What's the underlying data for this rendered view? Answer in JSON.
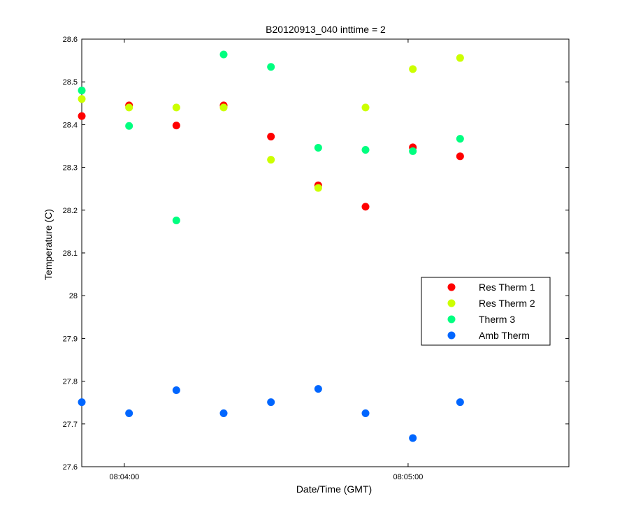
{
  "chart_data": {
    "type": "scatter",
    "title": "B20120913_040 inttime = 2",
    "xlabel": "Date/Time (GMT)",
    "ylabel": "Temperature (C)",
    "ylim": [
      27.6,
      28.6
    ],
    "xlim": [
      "08:03:51",
      "08:05:34"
    ],
    "y_ticks": [
      27.6,
      27.7,
      27.8,
      27.9,
      28.0,
      28.1,
      28.2,
      28.3,
      28.4,
      28.5,
      28.6
    ],
    "y_tick_labels": [
      "27.6",
      "27.7",
      "27.8",
      "27.9",
      "28",
      "28.1",
      "28.2",
      "28.3",
      "28.4",
      "28.5",
      "28.6"
    ],
    "x_ticks": [
      "08:04:00",
      "08:05:00"
    ],
    "x_tick_labels": [
      "08:04:00",
      "08:05:00"
    ],
    "grid": false,
    "legend_position": "center-right",
    "x": [
      "08:03:51",
      "08:04:01",
      "08:04:11",
      "08:04:21",
      "08:04:31",
      "08:04:41",
      "08:04:51",
      "08:05:01",
      "08:05:11"
    ],
    "series": [
      {
        "name": "Res Therm 1",
        "color": "#ff0000",
        "values": [
          28.42,
          28.445,
          28.398,
          28.445,
          28.372,
          28.258,
          28.208,
          28.347,
          28.326
        ]
      },
      {
        "name": "Res Therm 2",
        "color": "#ccff00",
        "values": [
          28.46,
          28.44,
          28.44,
          28.44,
          28.318,
          28.252,
          28.44,
          28.53,
          28.556
        ]
      },
      {
        "name": "Therm 3",
        "color": "#00ff80",
        "values": [
          28.48,
          28.397,
          28.176,
          28.564,
          28.535,
          28.346,
          28.341,
          28.338,
          28.367
        ]
      },
      {
        "name": "Amb Therm",
        "color": "#0066ff",
        "values": [
          27.751,
          27.725,
          27.779,
          27.725,
          27.751,
          27.782,
          27.725,
          27.667,
          27.751
        ]
      }
    ]
  }
}
